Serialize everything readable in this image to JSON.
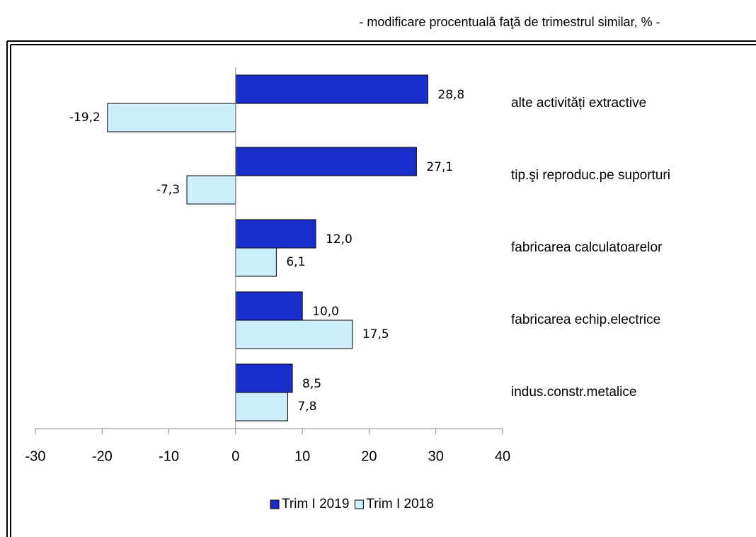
{
  "chart_data": {
    "type": "hbar",
    "subtitle": "- modificare procentuală faţă de trimestrul similar, % -",
    "categories": [
      "alte activități extractive",
      "tip.şi reproduc.pe suporturi",
      "fabricarea calculatoarelor",
      "fabricarea echip.electrice",
      "indus.constr.metalice"
    ],
    "series": [
      {
        "name": "Trim I 2019",
        "color": "#1a2ecc",
        "values": [
          28.8,
          27.1,
          12.0,
          10.0,
          8.5
        ],
        "value_labels": [
          "28,8",
          "27,1",
          "12,0",
          "10,0",
          "8,5"
        ]
      },
      {
        "name": "Trim I 2018",
        "color": "#cdeefd",
        "values": [
          -19.2,
          -7.3,
          6.1,
          17.5,
          7.8
        ],
        "value_labels": [
          "-19,2",
          "-7,3",
          "6,1",
          "17,5",
          "7,8"
        ]
      }
    ],
    "xlim": [
      -30,
      40
    ],
    "xticks": [
      -30,
      -20,
      -10,
      0,
      10,
      20,
      30,
      40
    ],
    "legend": "bottom"
  }
}
